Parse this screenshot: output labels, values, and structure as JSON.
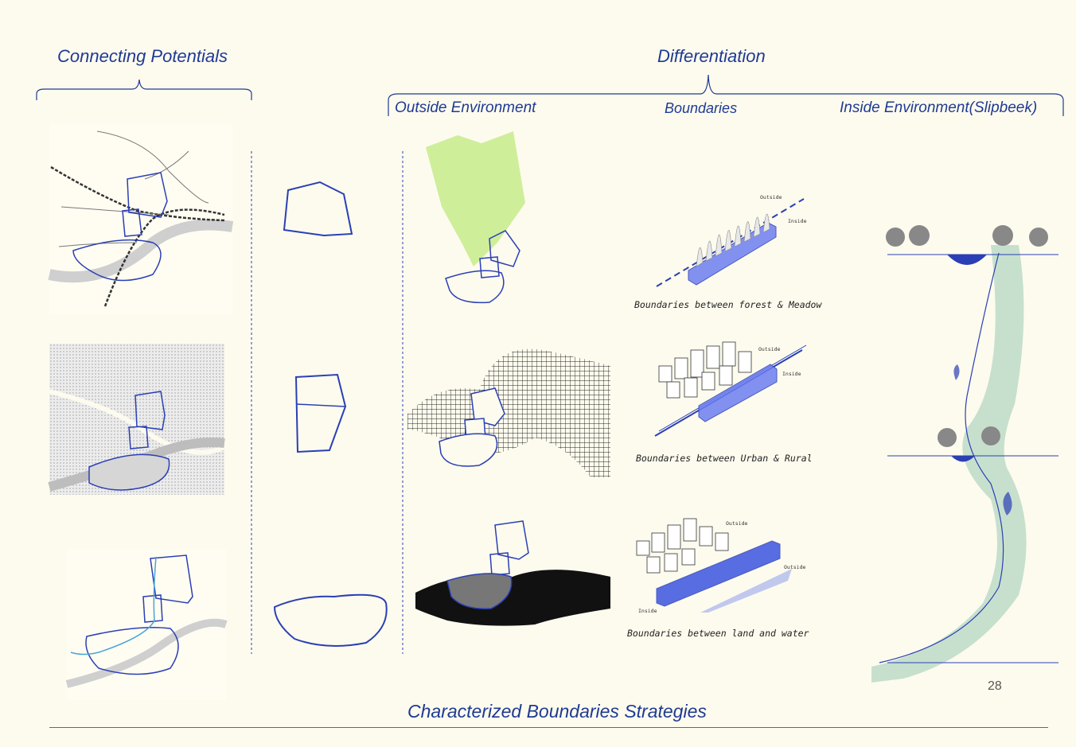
{
  "headings": {
    "connecting": "Connecting Potentials",
    "differentiation": "Differentiation",
    "outside": "Outside Environment",
    "boundaries": "Boundaries",
    "inside": "Inside Environment(Slipbeek)"
  },
  "captions": {
    "forest": "Boundaries between forest & Meadow",
    "urban": "Boundaries between Urban & Rural",
    "water": "Boundaries between land and water"
  },
  "diagram_labels": {
    "outside": "Outside",
    "inside": "Inside"
  },
  "footer": {
    "title": "Characterized Boundaries Strategies",
    "page_number": "28"
  },
  "colors": {
    "background": "#fdfbee",
    "accent_blue": "#2a3fb5",
    "heading_blue": "#1f3a93",
    "forest_green": "#cfee9a",
    "river_green": "#b9d9c6",
    "river_grey": "#cfcfcf"
  }
}
